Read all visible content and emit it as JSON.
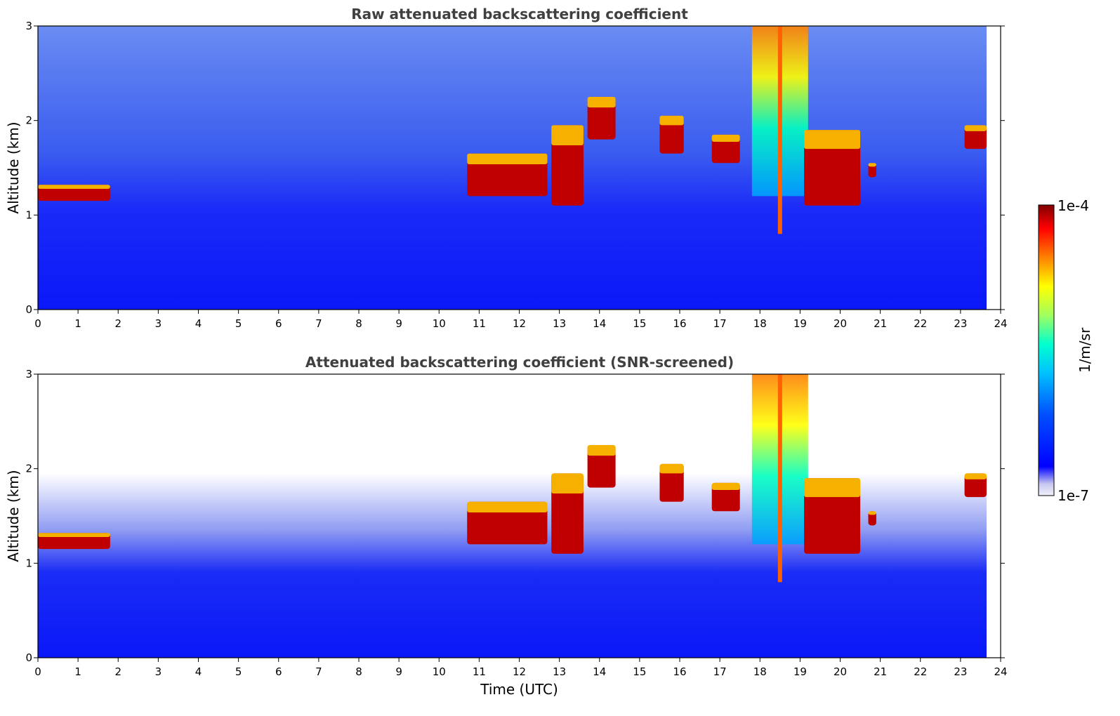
{
  "chart_data": [
    {
      "type": "heatmap",
      "title": "Raw attenuated backscattering coefficient",
      "xlabel": "",
      "ylabel": "Altitude (km)",
      "xlim": [
        0,
        24
      ],
      "ylim": [
        0,
        3
      ],
      "x_ticks": [
        "0",
        "1",
        "2",
        "3",
        "4",
        "5",
        "6",
        "7",
        "8",
        "9",
        "10",
        "11",
        "12",
        "13",
        "14",
        "15",
        "16",
        "17",
        "18",
        "19",
        "20",
        "21",
        "22",
        "23",
        "24"
      ],
      "y_ticks": [
        "0",
        "1",
        "2",
        "3"
      ],
      "data_end_x": 23.65,
      "features": [
        {
          "kind": "cloud",
          "x": [
            0.0,
            1.8
          ],
          "y": [
            1.15,
            1.32
          ]
        },
        {
          "kind": "cloud",
          "x": [
            10.7,
            12.7
          ],
          "y": [
            1.2,
            1.65
          ]
        },
        {
          "kind": "cloud",
          "x": [
            12.8,
            13.6
          ],
          "y": [
            1.1,
            1.95
          ]
        },
        {
          "kind": "cloud",
          "x": [
            13.7,
            14.4
          ],
          "y": [
            1.8,
            2.25
          ]
        },
        {
          "kind": "cloud",
          "x": [
            15.5,
            16.1
          ],
          "y": [
            1.65,
            2.05
          ]
        },
        {
          "kind": "cloud",
          "x": [
            16.8,
            17.5
          ],
          "y": [
            1.55,
            1.85
          ]
        },
        {
          "kind": "precip",
          "x": [
            17.8,
            19.2
          ],
          "y": [
            1.2,
            3.0
          ]
        },
        {
          "kind": "cloud",
          "x": [
            19.1,
            20.5
          ],
          "y": [
            1.1,
            1.9
          ]
        },
        {
          "kind": "cloud",
          "x": [
            20.7,
            20.9
          ],
          "y": [
            1.4,
            1.55
          ]
        },
        {
          "kind": "cloud",
          "x": [
            23.1,
            23.65
          ],
          "y": [
            1.7,
            1.95
          ]
        }
      ]
    },
    {
      "type": "heatmap",
      "title": "Attenuated backscattering coefficient (SNR-screened)",
      "xlabel": "Time (UTC)",
      "ylabel": "Altitude (km)",
      "xlim": [
        0,
        24
      ],
      "ylim": [
        0,
        3
      ],
      "x_ticks": [
        "0",
        "1",
        "2",
        "3",
        "4",
        "5",
        "6",
        "7",
        "8",
        "9",
        "10",
        "11",
        "12",
        "13",
        "14",
        "15",
        "16",
        "17",
        "18",
        "19",
        "20",
        "21",
        "22",
        "23",
        "24"
      ],
      "y_ticks": [
        "0",
        "1",
        "2",
        "3"
      ],
      "data_end_x": 23.65,
      "features": [
        {
          "kind": "cloud",
          "x": [
            0.0,
            1.8
          ],
          "y": [
            1.15,
            1.32
          ]
        },
        {
          "kind": "cloud",
          "x": [
            10.7,
            12.7
          ],
          "y": [
            1.2,
            1.65
          ]
        },
        {
          "kind": "cloud",
          "x": [
            12.8,
            13.6
          ],
          "y": [
            1.1,
            1.95
          ]
        },
        {
          "kind": "cloud",
          "x": [
            13.7,
            14.4
          ],
          "y": [
            1.8,
            2.25
          ]
        },
        {
          "kind": "cloud",
          "x": [
            15.5,
            16.1
          ],
          "y": [
            1.65,
            2.05
          ]
        },
        {
          "kind": "cloud",
          "x": [
            16.8,
            17.5
          ],
          "y": [
            1.55,
            1.85
          ]
        },
        {
          "kind": "precip",
          "x": [
            17.8,
            19.2
          ],
          "y": [
            1.2,
            3.0
          ]
        },
        {
          "kind": "cloud",
          "x": [
            19.1,
            20.5
          ],
          "y": [
            1.1,
            1.9
          ]
        },
        {
          "kind": "cloud",
          "x": [
            20.7,
            20.9
          ],
          "y": [
            1.4,
            1.55
          ]
        },
        {
          "kind": "cloud",
          "x": [
            23.1,
            23.65
          ],
          "y": [
            1.7,
            1.95
          ]
        }
      ]
    }
  ],
  "colorbar": {
    "max_label": "1e-4",
    "min_label": "1e-7",
    "label": "1/m/sr",
    "colormap": "jet",
    "colors": [
      "#e8e8f8",
      "#0000ff",
      "#00a0ff",
      "#00ffff",
      "#80ff80",
      "#ffff00",
      "#ff8000",
      "#ff0000",
      "#800000"
    ]
  }
}
